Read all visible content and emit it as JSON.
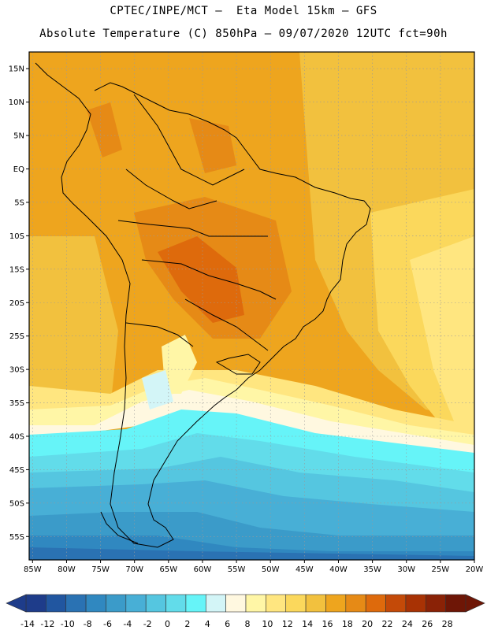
{
  "header": {
    "line1": "CPTEC/INPE/MCT –  Eta Model 15km – GFS",
    "line2": "Absolute Temperature (C) 850hPa – 09/07/2020 12UTC fct=90h"
  },
  "map": {
    "lat_labels": [
      "15N",
      "10N",
      "5N",
      "EQ",
      "5S",
      "10S",
      "15S",
      "20S",
      "25S",
      "30S",
      "35S",
      "40S",
      "45S",
      "50S",
      "55S"
    ],
    "lon_labels": [
      "85W",
      "80W",
      "75W",
      "70W",
      "65W",
      "60W",
      "55W",
      "50W",
      "45W",
      "40W",
      "35W",
      "30W",
      "25W",
      "20W"
    ],
    "lat_range": [
      17.5,
      -58.5
    ],
    "lon_range": [
      -85.5,
      -20
    ]
  },
  "colorbar": {
    "labels": [
      "-14",
      "-12",
      "-10",
      "-8",
      "-6",
      "-4",
      "-2",
      "0",
      "2",
      "4",
      "6",
      "8",
      "10",
      "12",
      "14",
      "16",
      "18",
      "20",
      "22",
      "24",
      "26",
      "28"
    ],
    "colors": [
      "#1e3c8a",
      "#2156a0",
      "#2a72b3",
      "#3088c0",
      "#3b9bc9",
      "#48afd6",
      "#55c6e0",
      "#62dcea",
      "#66f4f8",
      "#d3f5f7",
      "#fff8e0",
      "#fff6a6",
      "#ffe680",
      "#fbd85c",
      "#f2c13e",
      "#eea51e",
      "#e68a16",
      "#de6a0c",
      "#c44a08",
      "#a83204",
      "#8a2206",
      "#6e1606"
    ]
  }
}
